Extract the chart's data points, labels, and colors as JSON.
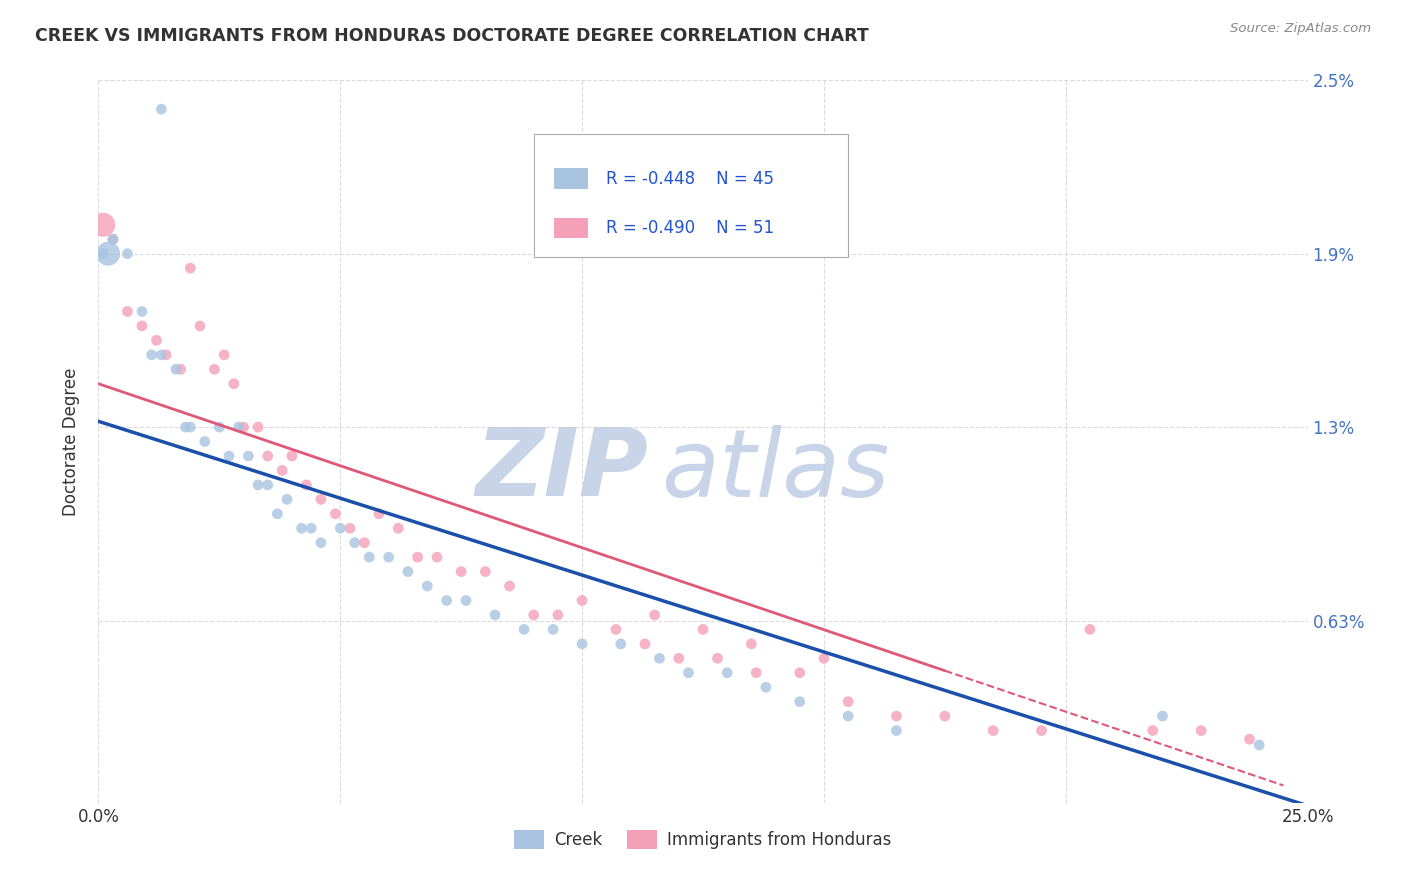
{
  "title": "CREEK VS IMMIGRANTS FROM HONDURAS DOCTORATE DEGREE CORRELATION CHART",
  "source": "Source: ZipAtlas.com",
  "ylabel": "Doctorate Degree",
  "xlim": [
    0,
    0.25
  ],
  "ylim": [
    0,
    0.025
  ],
  "ytick_vals": [
    0.0,
    0.0063,
    0.013,
    0.019,
    0.025
  ],
  "ytick_labels": [
    "",
    "0.63%",
    "1.3%",
    "1.9%",
    "2.5%"
  ],
  "xtick_vals": [
    0.0,
    0.05,
    0.1,
    0.15,
    0.2,
    0.25
  ],
  "xtick_labels": [
    "0.0%",
    "",
    "",
    "",
    "",
    "25.0%"
  ],
  "legend_r1": "-0.448",
  "legend_n1": "45",
  "legend_r2": "-0.490",
  "legend_n2": "51",
  "creek_color": "#a8c4e0",
  "honduras_color": "#f4a0b8",
  "line_creek_color": "#1a4faa",
  "line_honduras_color": "#e05878",
  "watermark_zip_color": "#c8d4e8",
  "watermark_atlas_color": "#c8d4e8",
  "background_color": "#ffffff",
  "grid_color": "#cccccc",
  "title_color": "#333333",
  "axis_label_color": "#333333",
  "tick_label_color": "#4472c4",
  "creek_x": [
    0.001,
    0.003,
    0.013,
    0.002,
    0.006,
    0.009,
    0.011,
    0.013,
    0.016,
    0.018,
    0.019,
    0.022,
    0.025,
    0.027,
    0.029,
    0.031,
    0.033,
    0.035,
    0.037,
    0.039,
    0.042,
    0.044,
    0.046,
    0.05,
    0.053,
    0.056,
    0.06,
    0.064,
    0.068,
    0.072,
    0.076,
    0.082,
    0.088,
    0.094,
    0.1,
    0.108,
    0.116,
    0.122,
    0.13,
    0.138,
    0.145,
    0.155,
    0.165,
    0.22,
    0.24
  ],
  "creek_y": [
    0.019,
    0.0195,
    0.024,
    0.019,
    0.019,
    0.017,
    0.0155,
    0.0155,
    0.015,
    0.013,
    0.013,
    0.0125,
    0.013,
    0.012,
    0.013,
    0.012,
    0.011,
    0.011,
    0.01,
    0.0105,
    0.0095,
    0.0095,
    0.009,
    0.0095,
    0.009,
    0.0085,
    0.0085,
    0.008,
    0.0075,
    0.007,
    0.007,
    0.0065,
    0.006,
    0.006,
    0.0055,
    0.0055,
    0.005,
    0.0045,
    0.0045,
    0.004,
    0.0035,
    0.003,
    0.0025,
    0.003,
    0.002
  ],
  "creek_sizes": [
    60,
    60,
    60,
    300,
    60,
    60,
    60,
    60,
    60,
    60,
    60,
    60,
    60,
    60,
    60,
    60,
    60,
    60,
    60,
    60,
    60,
    60,
    60,
    60,
    60,
    60,
    60,
    60,
    60,
    60,
    60,
    60,
    60,
    60,
    60,
    60,
    60,
    60,
    60,
    60,
    60,
    60,
    60,
    60,
    60
  ],
  "honduras_x": [
    0.001,
    0.003,
    0.006,
    0.009,
    0.012,
    0.014,
    0.017,
    0.019,
    0.021,
    0.024,
    0.026,
    0.028,
    0.03,
    0.033,
    0.035,
    0.038,
    0.04,
    0.043,
    0.046,
    0.049,
    0.052,
    0.055,
    0.058,
    0.062,
    0.066,
    0.07,
    0.075,
    0.08,
    0.085,
    0.09,
    0.095,
    0.1,
    0.107,
    0.113,
    0.12,
    0.128,
    0.136,
    0.145,
    0.155,
    0.165,
    0.175,
    0.185,
    0.195,
    0.205,
    0.218,
    0.228,
    0.238,
    0.115,
    0.125,
    0.135,
    0.15
  ],
  "honduras_y": [
    0.02,
    0.0195,
    0.017,
    0.0165,
    0.016,
    0.0155,
    0.015,
    0.0185,
    0.0165,
    0.015,
    0.0155,
    0.0145,
    0.013,
    0.013,
    0.012,
    0.0115,
    0.012,
    0.011,
    0.0105,
    0.01,
    0.0095,
    0.009,
    0.01,
    0.0095,
    0.0085,
    0.0085,
    0.008,
    0.008,
    0.0075,
    0.0065,
    0.0065,
    0.007,
    0.006,
    0.0055,
    0.005,
    0.005,
    0.0045,
    0.0045,
    0.0035,
    0.003,
    0.003,
    0.0025,
    0.0025,
    0.006,
    0.0025,
    0.0025,
    0.0022,
    0.0065,
    0.006,
    0.0055,
    0.005
  ],
  "honduras_sizes": [
    300,
    60,
    60,
    60,
    60,
    60,
    60,
    60,
    60,
    60,
    60,
    60,
    60,
    60,
    60,
    60,
    60,
    60,
    60,
    60,
    60,
    60,
    60,
    60,
    60,
    60,
    60,
    60,
    60,
    60,
    60,
    60,
    60,
    60,
    60,
    60,
    60,
    60,
    60,
    60,
    60,
    60,
    60,
    60,
    60,
    60,
    60,
    60,
    60,
    60,
    60
  ],
  "creek_line_x0": 0.0,
  "creek_line_y0": 0.0132,
  "creek_line_x1": 0.25,
  "creek_line_y1": -0.0001,
  "honduras_line_x0": 0.0,
  "honduras_line_y0": 0.0145,
  "honduras_line_x1": 0.245,
  "honduras_line_y1": 0.0006
}
